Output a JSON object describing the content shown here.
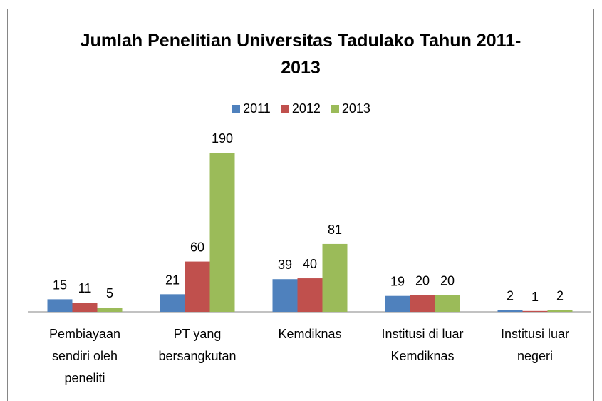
{
  "chart_data": {
    "type": "bar",
    "title": "Jumlah Penelitian Universitas Tadulako Tahun 2011-2013",
    "categories": [
      "Pembiayaan sendiri oleh peneliti",
      "PT yang bersangkutan",
      "Kemdiknas",
      "Institusi di luar Kemdiknas",
      "Institusi luar negeri"
    ],
    "series": [
      {
        "name": "2011",
        "color": "#4f81bd",
        "values": [
          15,
          21,
          39,
          19,
          2
        ]
      },
      {
        "name": "2012",
        "color": "#c0504d",
        "values": [
          11,
          60,
          40,
          20,
          1
        ]
      },
      {
        "name": "2013",
        "color": "#9bbb59",
        "values": [
          5,
          190,
          81,
          20,
          2
        ]
      }
    ],
    "legend": "top"
  }
}
